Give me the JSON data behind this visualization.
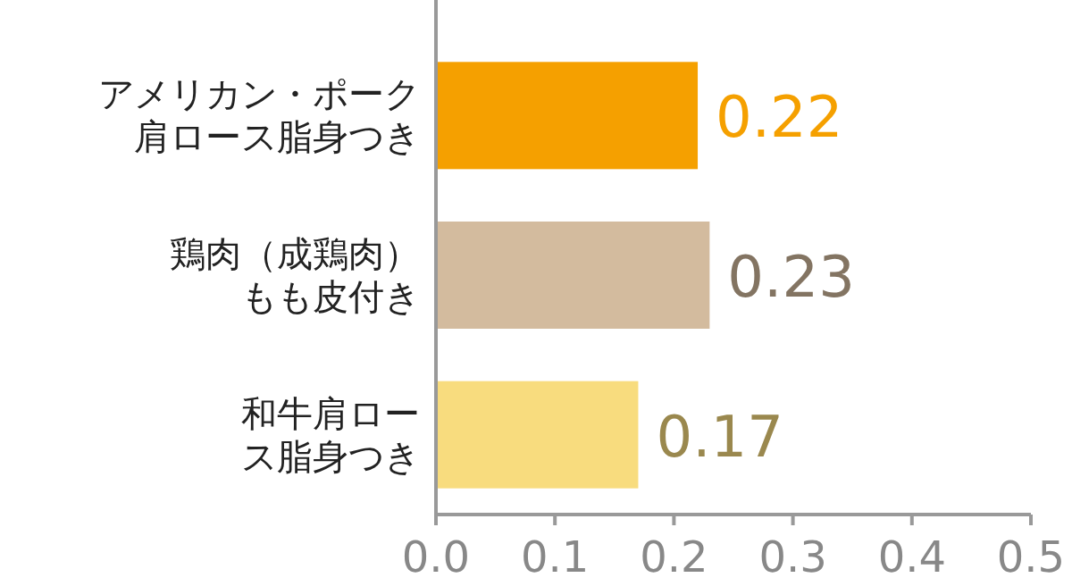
{
  "chart_data": {
    "type": "bar",
    "orientation": "horizontal",
    "categories": [
      "アメリカン・ポーク肩ロース脂身つき",
      "鶏肉（成鶏肉）もも皮付き",
      "和牛肩ロース脂身つき"
    ],
    "values": [
      0.22,
      0.23,
      0.17
    ],
    "colors": [
      "#f5a000",
      "#d3bb9e",
      "#f8dc7e"
    ],
    "data_labels": true,
    "xlim": [
      0,
      0.5
    ],
    "xticks": [
      {
        "value": 0,
        "label": "0.0"
      },
      {
        "value": 0.1,
        "label": "0.1"
      },
      {
        "value": 0.2,
        "label": "0.2"
      },
      {
        "value": 0.3,
        "label": "0.3"
      },
      {
        "value": 0.4,
        "label": "0.4"
      },
      {
        "value": 0.5,
        "label": "0.5"
      }
    ]
  }
}
